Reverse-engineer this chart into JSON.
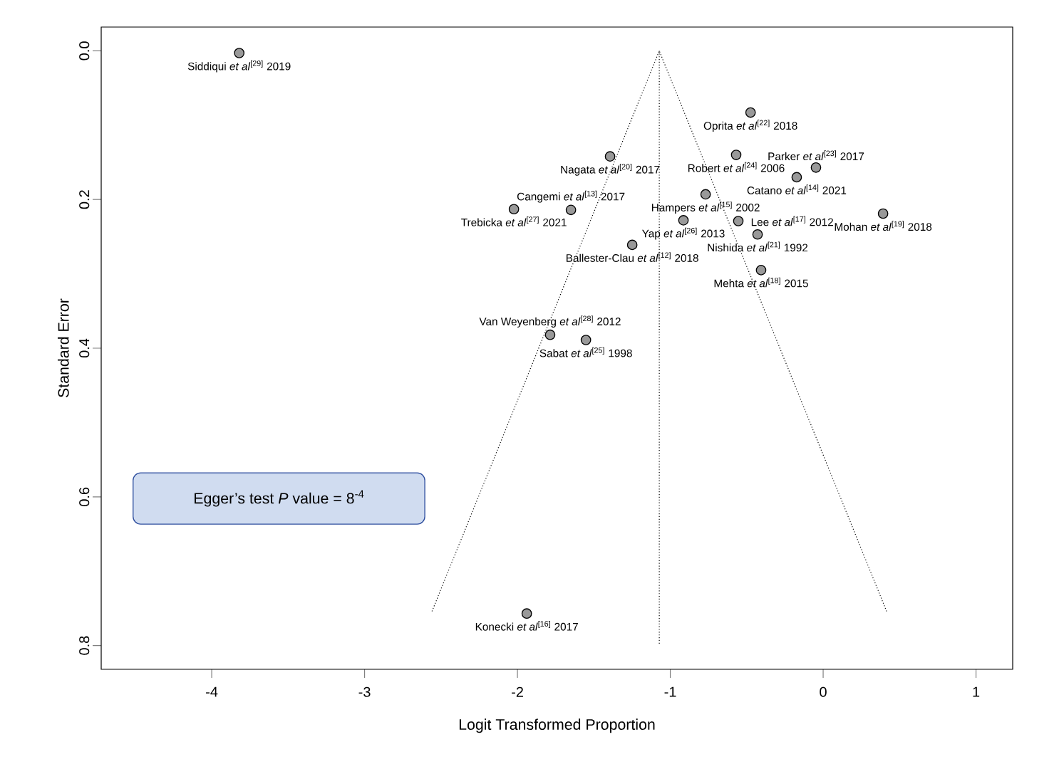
{
  "chart_data": {
    "type": "scatter",
    "xlabel": "Logit Transformed Proportion",
    "ylabel": "Standard Error",
    "xlim": [
      -4.723,
      1.24
    ],
    "ylim": [
      0.832,
      -0.032
    ],
    "xticks": [
      -4,
      -3,
      -2,
      -1,
      0,
      1
    ],
    "yticks": [
      {
        "value": 0,
        "label": "0.0"
      },
      {
        "value": 0.2,
        "label": "0.2"
      },
      {
        "value": 0.4,
        "label": "0.4"
      },
      {
        "value": 0.6,
        "label": "0.6"
      },
      {
        "value": 0.8,
        "label": "0.8"
      }
    ],
    "grid": false,
    "series": [
      {
        "type": "scatter",
        "color": "#999999",
        "marker": "circle",
        "x": [
          -3.82,
          -0.475,
          -1.394,
          -0.569,
          -0.047,
          -0.173,
          -1.65,
          -2.023,
          -0.769,
          -0.914,
          -0.555,
          0.392,
          -0.429,
          -1.249,
          -0.406,
          -1.786,
          -1.552,
          -1.939
        ],
        "values": [
          0.003,
          0.083,
          0.142,
          0.14,
          0.157,
          0.17,
          0.214,
          0.213,
          0.193,
          0.228,
          0.229,
          0.219,
          0.247,
          0.261,
          0.295,
          0.382,
          0.389,
          0.757
        ]
      },
      {
        "type": "line",
        "color": "#000000",
        "marker": "none",
        "line_style": "dotted",
        "x": [
          -2.559,
          -1.072,
          0.415
        ],
        "values": [
          0.754,
          0,
          0.754
        ]
      },
      {
        "type": "line",
        "color": "#000000",
        "marker": "none",
        "line_style": "dotted",
        "x": [
          -1.072,
          -1.072
        ],
        "values": [
          0,
          0.8
        ]
      }
    ],
    "annotations": [
      {
        "text": "Siddiqui *et al*$^{[29]}$ 2019",
        "x": -3.82,
        "y": 0.003
      },
      {
        "text": "Oprita *et al*$^{[22]}$ 2018",
        "x": -0.475,
        "y": 0.083
      },
      {
        "text": "Nagata *et al*$^{[20]}$ 2017",
        "x": -1.394,
        "y": 0.142
      },
      {
        "text": "Robert *et al*$^{[24]}$ 2006",
        "x": -0.569,
        "y": 0.14
      },
      {
        "text": "Parker *et al*$^{[23]}$ 2017",
        "x": -0.047,
        "y": 0.157
      },
      {
        "text": "Catano *et al*$^{[14]}$ 2021",
        "x": -0.173,
        "y": 0.17
      },
      {
        "text": "Cangemi *et al*$^{[13]}$ 2017",
        "x": -1.65,
        "y": 0.214
      },
      {
        "text": "Trebicka *et al*$^{[27]}$ 2021",
        "x": -2.023,
        "y": 0.213
      },
      {
        "text": "Hampers *et al*$^{[15]}$ 2002",
        "x": -0.769,
        "y": 0.193
      },
      {
        "text": "Yap *et al*$^{[26]}$ 2013",
        "x": -0.914,
        "y": 0.228
      },
      {
        "text": "Lee *et al*$^{[17]}$ 2012",
        "x": -0.555,
        "y": 0.229
      },
      {
        "text": "Mohan *et al*$^{[19]}$ 2018",
        "x": 0.392,
        "y": 0.219
      },
      {
        "text": "Nishida *et al*$^{[21]}$ 1992",
        "x": -0.429,
        "y": 0.247
      },
      {
        "text": "Ballester-Clau *et al*$^{[12]}$ 2018",
        "x": -1.249,
        "y": 0.261
      },
      {
        "text": "Mehta *et al*$^{[18]}$ 2015",
        "x": -0.406,
        "y": 0.295
      },
      {
        "text": "Van Weyenberg *et al*$^{[28]}$ 2012",
        "x": -1.786,
        "y": 0.382
      },
      {
        "text": "Sabat *et al*$^{[25]}$ 1998",
        "x": -1.552,
        "y": 0.389
      },
      {
        "text": "Konecki *et al*$^{[16]}$ 2017",
        "x": -1.939,
        "y": 0.757
      },
      "Egger’s test *P* value = 8$^{-4}$"
    ]
  }
}
